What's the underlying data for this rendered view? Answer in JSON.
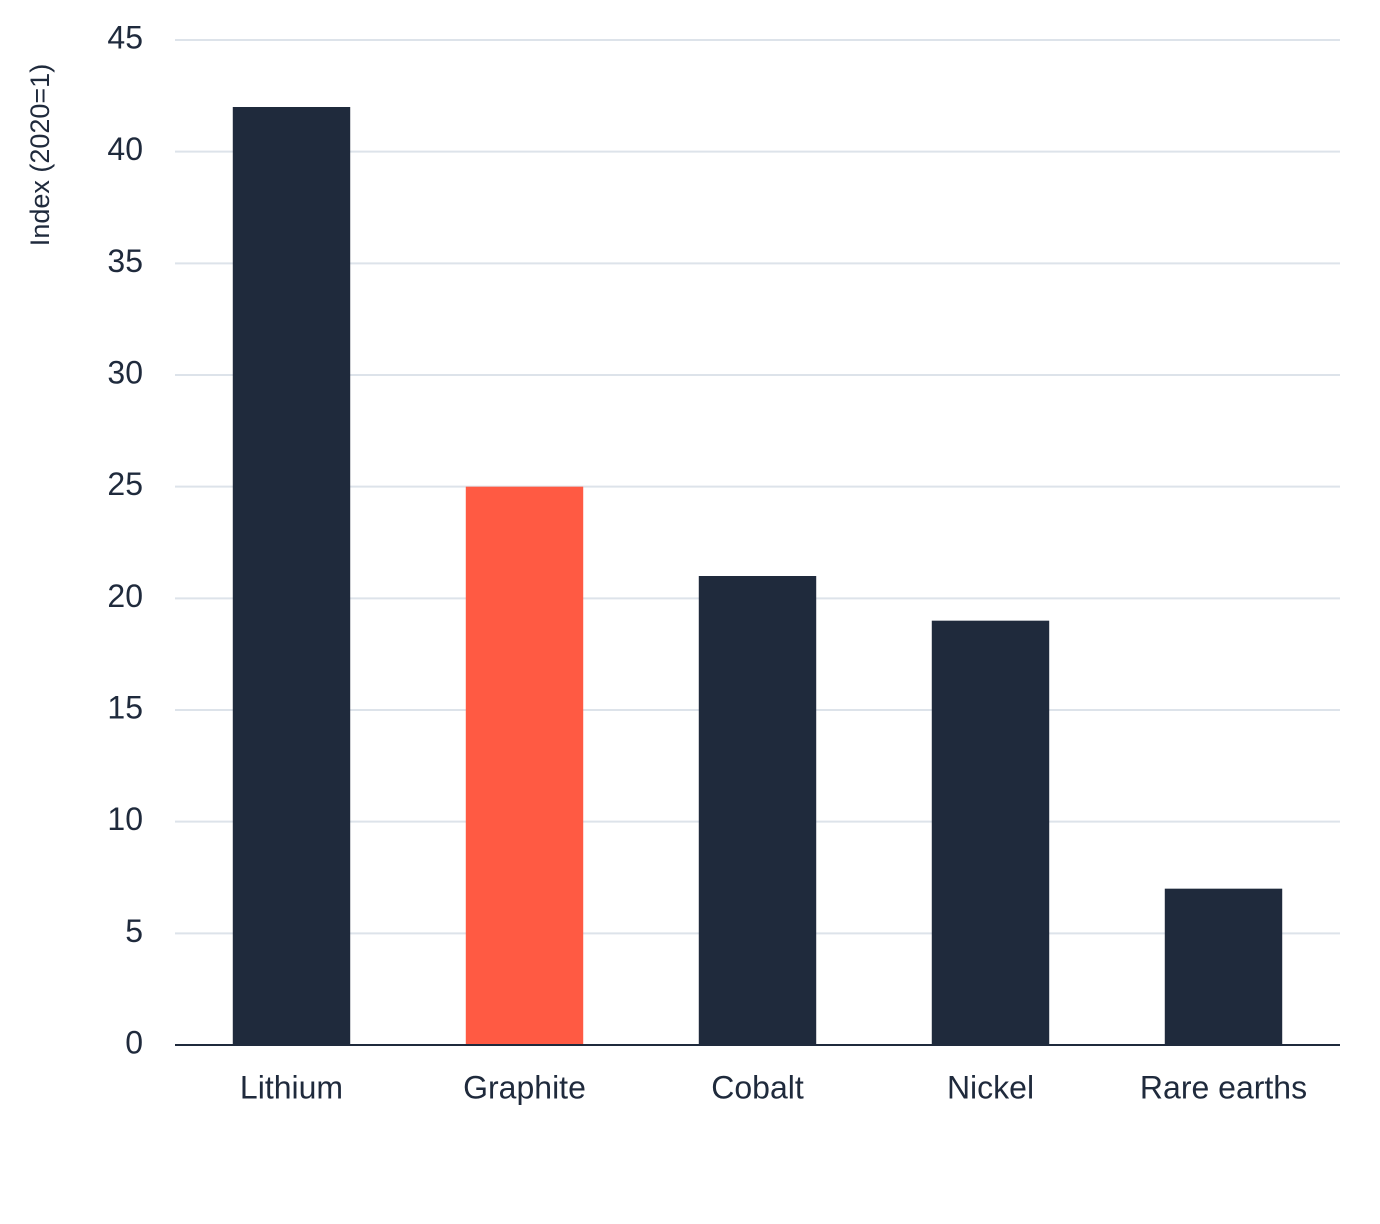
{
  "chart_data": {
    "type": "bar",
    "y_label": "Index (2020=1)",
    "categories": [
      "Lithium",
      "Graphite",
      "Cobalt",
      "Nickel",
      "Rare earths"
    ],
    "values": [
      42,
      25,
      21,
      19,
      7
    ],
    "colors": [
      "#1f2a3c",
      "#ff5a43",
      "#1f2a3c",
      "#1f2a3c",
      "#1f2a3c"
    ],
    "ylim": [
      0,
      45
    ],
    "yticks": [
      0,
      5,
      10,
      15,
      20,
      25,
      30,
      35,
      40,
      45
    ],
    "grid": true
  }
}
